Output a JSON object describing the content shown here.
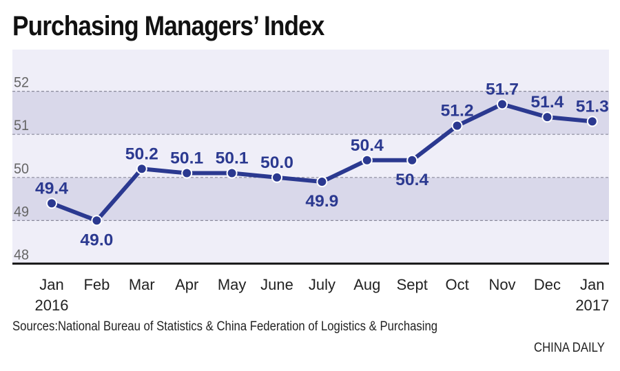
{
  "chart_data": {
    "type": "line",
    "title": "Purchasing Managers’ Index",
    "categories": [
      "Jan",
      "Feb",
      "Mar",
      "Apr",
      "May",
      "June",
      "July",
      "Aug",
      "Sept",
      "Oct",
      "Nov",
      "Dec",
      "Jan"
    ],
    "year_labels": [
      "2016",
      "2017"
    ],
    "values": [
      49.4,
      49.0,
      50.2,
      50.1,
      50.1,
      50.0,
      49.9,
      50.4,
      50.4,
      51.2,
      51.7,
      51.4,
      51.3
    ],
    "value_labels": [
      "49.4",
      "49.0",
      "50.2",
      "50.1",
      "50.1",
      "50.0",
      "49.9",
      "50.4",
      "50.4",
      "51.2",
      "51.7",
      "51.4",
      "51.3"
    ],
    "label_below": [
      false,
      true,
      false,
      false,
      false,
      false,
      true,
      false,
      true,
      false,
      false,
      false,
      false
    ],
    "yticks": [
      "48",
      "49",
      "50",
      "51",
      "52"
    ],
    "ylim": [
      48,
      53
    ],
    "grid": true,
    "line_color": "#2b3990",
    "band_color": "#d9d8ea",
    "bg_color": "#efeef8"
  },
  "source": "Sources:National Bureau of Statistics & China Federation of Logistics & Purchasing",
  "credit": "CHINA DAILY"
}
